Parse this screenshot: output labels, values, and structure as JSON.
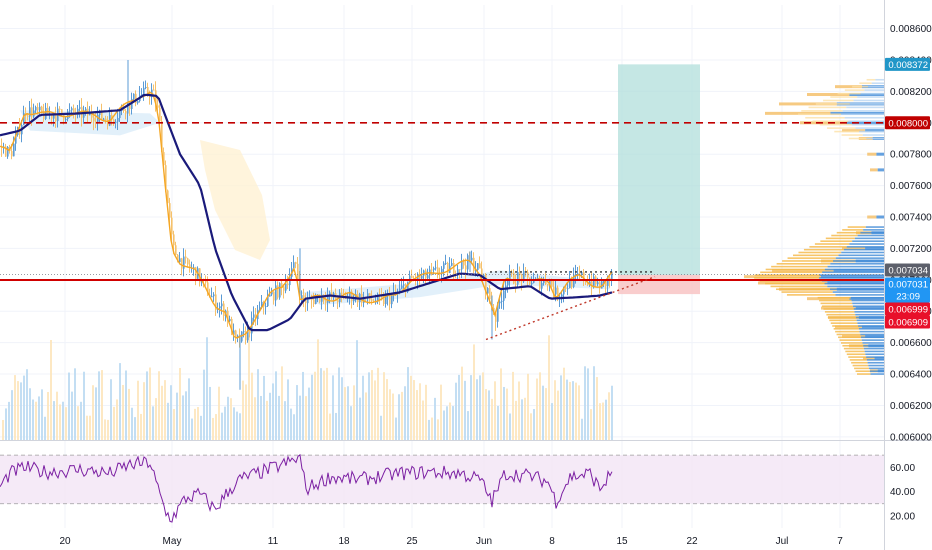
{
  "chart_data": {
    "type": "candlestick",
    "symbol_quote": "price",
    "price_axis": {
      "range": [
        0.00598,
        0.00875
      ],
      "ticks": [
        "0.008600",
        "0.008400",
        "0.008200",
        "0.008000",
        "0.007800",
        "0.007600",
        "0.007400",
        "0.007200",
        "0.007000",
        "0.006800",
        "0.006600",
        "0.006400",
        "0.006200",
        "0.006000"
      ]
    },
    "time_axis": {
      "labels": [
        "20",
        "May",
        "11",
        "18",
        "25",
        "Jun",
        "8",
        "15",
        "22",
        "Jul",
        "7"
      ]
    },
    "price_badges": [
      {
        "label": "0.008372",
        "value": 0.008372,
        "color": "#2196c8"
      },
      {
        "label": "0.008000",
        "value": 0.008,
        "color": "#c00000"
      },
      {
        "label": "0.007034",
        "value": 0.007034,
        "color": "#5d606b"
      },
      {
        "label": "0.007031",
        "value": 0.007031,
        "color": "#2196f3"
      },
      {
        "label": "23:09",
        "value": null,
        "color": "#2196f3"
      },
      {
        "label": "0.006999",
        "value": 0.006999,
        "color": "#e8102a"
      },
      {
        "label": "0.006909",
        "value": 0.006909,
        "color": "#e8102a"
      }
    ],
    "horizontal_levels": [
      {
        "value": 0.008,
        "style": "dashed",
        "color": "#c00000"
      },
      {
        "value": 0.006999,
        "style": "solid",
        "color": "#d00000"
      }
    ],
    "position_tool": {
      "entry": 0.007031,
      "target": 0.008372,
      "stop": 0.006909,
      "profit_color": "#b2dfdb",
      "loss_color": "#f8c8c8"
    },
    "trendlines": [
      {
        "name": "support",
        "color": "#c0392b",
        "style": "dotted"
      },
      {
        "name": "resistance",
        "color": "#333333",
        "style": "dotted"
      }
    ],
    "volume_profile_levels": [
      {
        "price": 0.00823,
        "size": 0.35
      },
      {
        "price": 0.00818,
        "size": 0.55
      },
      {
        "price": 0.00812,
        "size": 0.75
      },
      {
        "price": 0.00806,
        "size": 0.85
      },
      {
        "price": 0.008,
        "size": 0.6
      },
      {
        "price": 0.00795,
        "size": 0.3
      },
      {
        "price": 0.0079,
        "size": 0.18
      },
      {
        "price": 0.0078,
        "size": 0.12
      },
      {
        "price": 0.0077,
        "size": 0.1
      },
      {
        "price": 0.0074,
        "size": 0.12
      },
      {
        "price": 0.0073,
        "size": 0.2
      },
      {
        "price": 0.0072,
        "size": 0.3
      },
      {
        "price": 0.00712,
        "size": 0.45
      },
      {
        "price": 0.00706,
        "size": 0.8
      },
      {
        "price": 0.00702,
        "size": 1.0
      },
      {
        "price": 0.00698,
        "size": 0.9
      },
      {
        "price": 0.00694,
        "size": 0.75
      },
      {
        "price": 0.00688,
        "size": 0.55
      },
      {
        "price": 0.00682,
        "size": 0.45
      },
      {
        "price": 0.00676,
        "size": 0.4
      },
      {
        "price": 0.0067,
        "size": 0.35
      },
      {
        "price": 0.00664,
        "size": 0.3
      },
      {
        "price": 0.00658,
        "size": 0.25
      },
      {
        "price": 0.0065,
        "size": 0.15
      },
      {
        "price": 0.00642,
        "size": 0.1
      }
    ],
    "rsi": {
      "range": [
        10,
        80
      ],
      "ticks": [
        "60.00",
        "40.00",
        "20.00"
      ],
      "bands": [
        70,
        30
      ],
      "color": "#7b1fa2"
    },
    "colors": {
      "ma_fast": "#f5a623",
      "ma_slow": "#1a1a7a",
      "candles_up": "#5b9bd5",
      "candles_down": "#f5c16c"
    }
  }
}
